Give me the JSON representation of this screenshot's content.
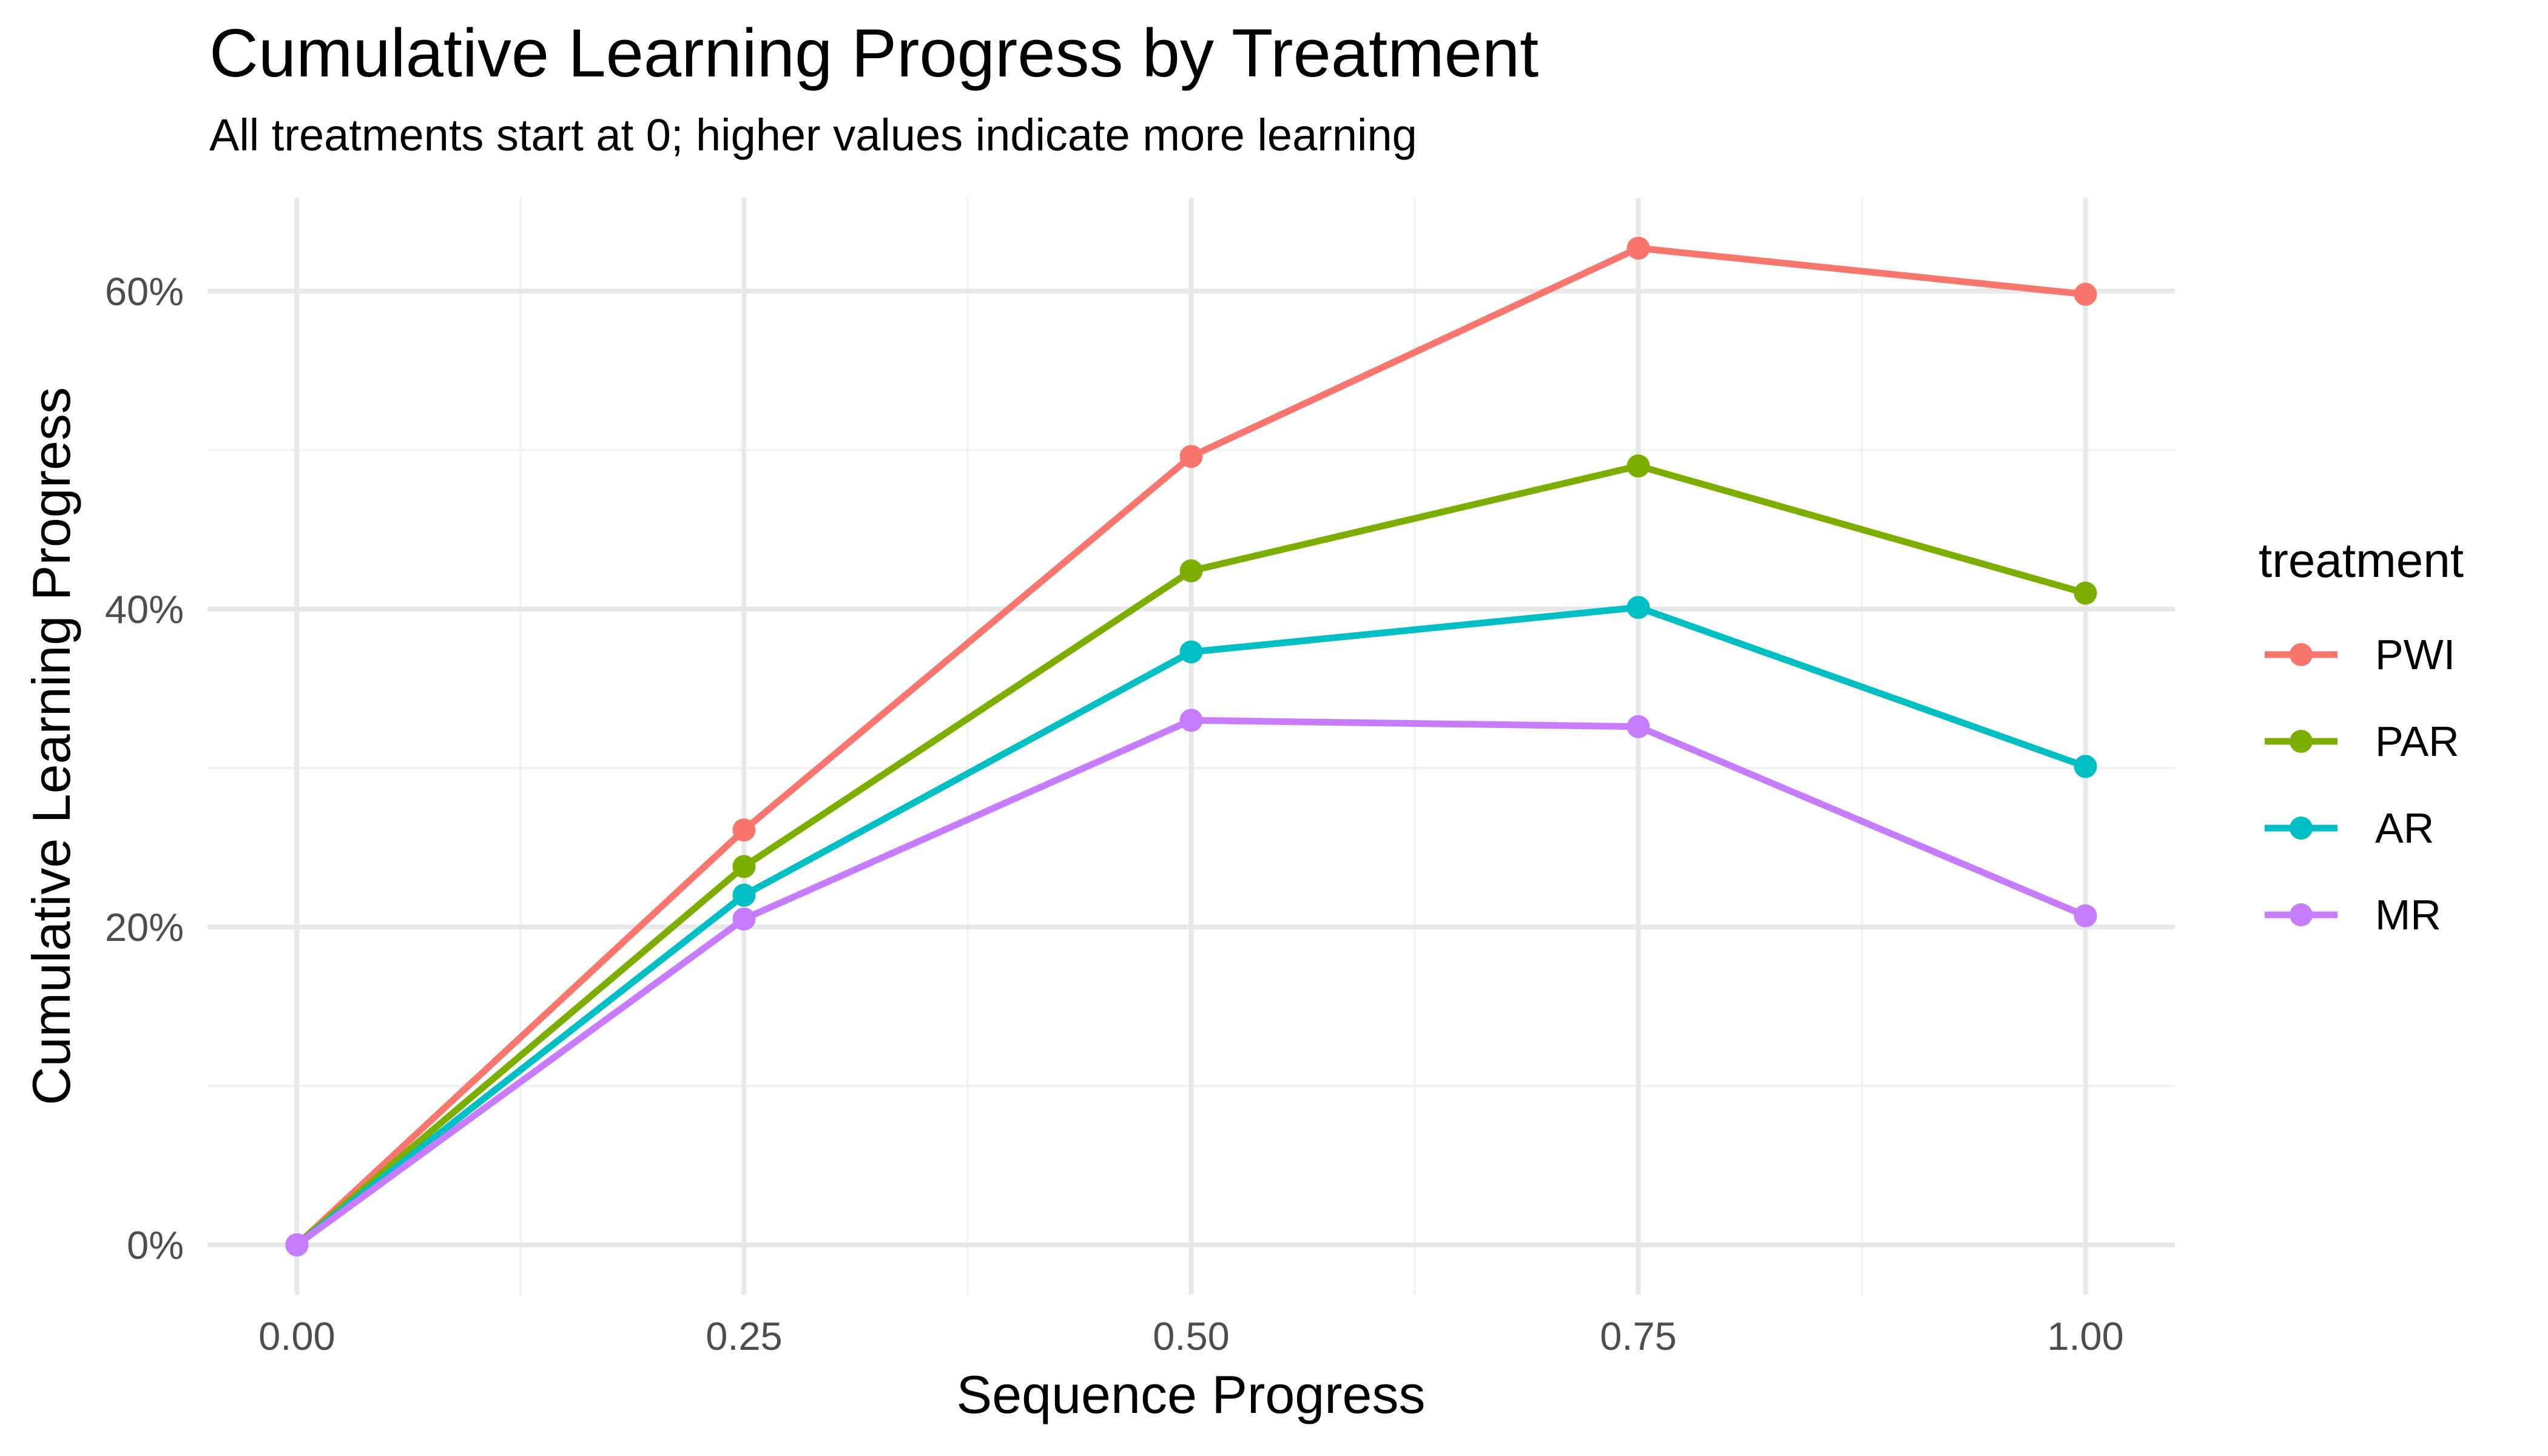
{
  "chart": {
    "title": "Cumulative Learning Progress by Treatment",
    "subtitle": "All treatments start at 0; higher values indicate more learning",
    "xlabel": "Sequence Progress",
    "ylabel": "Cumulative Learning Progress",
    "legend_title": "treatment"
  },
  "chart_data": {
    "type": "line",
    "x": [
      0,
      0.25,
      0.5,
      0.75,
      1.0
    ],
    "series": [
      {
        "name": "PWI",
        "color": "#F8766D",
        "values": [
          0,
          26.1,
          49.6,
          62.7,
          59.8
        ]
      },
      {
        "name": "PAR",
        "color": "#7CAE00",
        "values": [
          0,
          23.8,
          42.4,
          49.0,
          41.0
        ]
      },
      {
        "name": "AR",
        "color": "#00BFC4",
        "values": [
          0,
          22.0,
          37.3,
          40.1,
          30.1
        ]
      },
      {
        "name": "MR",
        "color": "#C77CFF",
        "values": [
          0,
          20.5,
          33.0,
          32.6,
          20.7
        ]
      }
    ],
    "title": "Cumulative Learning Progress by Treatment",
    "subtitle": "All treatments start at 0; higher values indicate more learning",
    "xlabel": "Sequence Progress",
    "ylabel": "Cumulative Learning Progress",
    "legend_title": "treatment",
    "legend_position": "right",
    "grid": true,
    "xlim": [
      -0.05,
      1.05
    ],
    "ylim": [
      -3.13,
      65.87
    ],
    "x_ticks": {
      "values": [
        0,
        0.25,
        0.5,
        0.75,
        1.0
      ],
      "labels": [
        "0.00",
        "0.25",
        "0.50",
        "0.75",
        "1.00"
      ]
    },
    "x_minor": [
      0.125,
      0.375,
      0.625,
      0.875
    ],
    "y_ticks": {
      "values": [
        0,
        20,
        40,
        60
      ],
      "labels": [
        "0%",
        "20%",
        "40%",
        "60%"
      ]
    },
    "y_minor": [
      10,
      30,
      50
    ],
    "colors": {
      "background": "#FFFFFF",
      "grid_major": "#E8E8E8",
      "grid_minor": "#F2F2F2",
      "tick_text": "#4D4D4D",
      "text": "#000000"
    }
  }
}
